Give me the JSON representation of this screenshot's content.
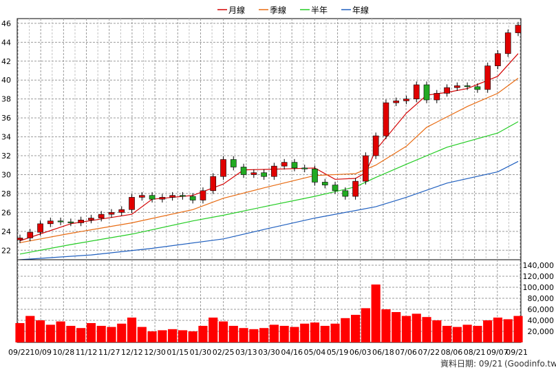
{
  "chart_data": [
    {
      "type": "candlestick",
      "legend": [
        {
          "name": "月線",
          "color": "#d40000"
        },
        {
          "name": "季線",
          "color": "#e86a10"
        },
        {
          "name": "半年",
          "color": "#22cc22"
        },
        {
          "name": "年線",
          "color": "#1f5fbf"
        }
      ],
      "ylim": [
        21,
        46.5
      ],
      "yticks": [
        22,
        24,
        26,
        28,
        30,
        32,
        34,
        36,
        38,
        40,
        42,
        44,
        46
      ],
      "grid": true,
      "up_color": "#e00000",
      "down_color": "#22aa22",
      "close_series": [
        [
          "09/22",
          23.3
        ],
        [
          "09/29",
          23.9
        ],
        [
          "10/09",
          24.8
        ],
        [
          "10/16",
          25.1
        ],
        [
          "10/23",
          25.0
        ],
        [
          "10/28",
          24.9
        ],
        [
          "11/04",
          25.2
        ],
        [
          "11/12",
          25.4
        ],
        [
          "11/19",
          25.8
        ],
        [
          "11/27",
          26.0
        ],
        [
          "12/04",
          26.3
        ],
        [
          "12/12",
          27.6
        ],
        [
          "12/19",
          27.8
        ],
        [
          "12/30",
          27.4
        ],
        [
          "01/08",
          27.6
        ],
        [
          "01/15",
          27.8
        ],
        [
          "01/22",
          27.7
        ],
        [
          "01/30",
          27.3
        ],
        [
          "02/10",
          28.3
        ],
        [
          "02/18",
          29.8
        ],
        [
          "02/25",
          31.6
        ],
        [
          "03/04",
          30.8
        ],
        [
          "03/13",
          30.0
        ],
        [
          "03/20",
          30.2
        ],
        [
          "03/30",
          29.8
        ],
        [
          "04/08",
          30.9
        ],
        [
          "04/16",
          31.3
        ],
        [
          "04/22",
          30.7
        ],
        [
          "04/28",
          30.6
        ],
        [
          "05/04",
          29.2
        ],
        [
          "05/11",
          28.9
        ],
        [
          "05/19",
          28.3
        ],
        [
          "05/26",
          27.7
        ],
        [
          "06/03",
          29.3
        ],
        [
          "06/10",
          32.0
        ],
        [
          "06/18",
          34.1
        ],
        [
          "06/23",
          37.6
        ],
        [
          "06/30",
          37.8
        ],
        [
          "07/06",
          38.0
        ],
        [
          "07/14",
          39.5
        ],
        [
          "07/22",
          37.9
        ],
        [
          "07/29",
          38.6
        ],
        [
          "08/06",
          39.2
        ],
        [
          "08/13",
          39.4
        ],
        [
          "08/21",
          39.3
        ],
        [
          "08/28",
          39.0
        ],
        [
          "09/03",
          41.5
        ],
        [
          "09/07",
          42.8
        ],
        [
          "09/14",
          45.0
        ],
        [
          "09/21",
          45.8
        ]
      ],
      "moving_averages": {
        "月線": [
          [
            "09/22",
            23.0
          ],
          [
            "10/28",
            24.8
          ],
          [
            "12/12",
            25.8
          ],
          [
            "12/30",
            27.4
          ],
          [
            "01/30",
            27.8
          ],
          [
            "02/25",
            29.0
          ],
          [
            "03/13",
            30.5
          ],
          [
            "04/16",
            30.6
          ],
          [
            "05/04",
            30.7
          ],
          [
            "05/19",
            29.5
          ],
          [
            "06/03",
            29.6
          ],
          [
            "06/10",
            30.2
          ],
          [
            "06/18",
            32.6
          ],
          [
            "07/06",
            36.5
          ],
          [
            "07/22",
            38.4
          ],
          [
            "08/06",
            38.7
          ],
          [
            "08/21",
            39.1
          ],
          [
            "09/07",
            40.4
          ],
          [
            "09/21",
            42.8
          ]
        ],
        "季線": [
          [
            "09/22",
            22.8
          ],
          [
            "10/28",
            23.8
          ],
          [
            "12/12",
            24.9
          ],
          [
            "01/30",
            26.3
          ],
          [
            "02/25",
            27.5
          ],
          [
            "03/30",
            28.6
          ],
          [
            "05/04",
            29.9
          ],
          [
            "06/03",
            30.1
          ],
          [
            "06/18",
            31.0
          ],
          [
            "07/06",
            33.0
          ],
          [
            "07/22",
            35.0
          ],
          [
            "08/21",
            37.2
          ],
          [
            "09/07",
            38.6
          ],
          [
            "09/21",
            40.2
          ]
        ],
        "半年": [
          [
            "09/22",
            21.6
          ],
          [
            "10/28",
            22.6
          ],
          [
            "12/12",
            23.7
          ],
          [
            "01/30",
            25.1
          ],
          [
            "02/25",
            25.7
          ],
          [
            "03/30",
            26.6
          ],
          [
            "05/04",
            27.7
          ],
          [
            "06/03",
            28.7
          ],
          [
            "06/18",
            29.7
          ],
          [
            "07/06",
            31.1
          ],
          [
            "08/06",
            32.9
          ],
          [
            "09/07",
            34.4
          ],
          [
            "09/21",
            35.6
          ]
        ],
        "年線": [
          [
            "09/22",
            21.0
          ],
          [
            "11/12",
            21.5
          ],
          [
            "12/30",
            22.2
          ],
          [
            "02/25",
            23.2
          ],
          [
            "03/30",
            24.2
          ],
          [
            "05/04",
            25.4
          ],
          [
            "06/03",
            26.2
          ],
          [
            "06/18",
            26.6
          ],
          [
            "07/06",
            27.6
          ],
          [
            "08/06",
            29.1
          ],
          [
            "09/07",
            30.3
          ],
          [
            "09/21",
            31.4
          ]
        ]
      }
    },
    {
      "type": "bar",
      "name": "volume",
      "ylim": [
        0,
        150000
      ],
      "yticks": [
        "140,000",
        "120,000",
        "100,000",
        "80,000",
        "60,000",
        "40,000",
        "20,000"
      ],
      "ytick_values": [
        140000,
        120000,
        100000,
        80000,
        60000,
        40000,
        20000
      ],
      "bar_color": "#ff0000",
      "x_tick_labels": [
        "09/22",
        "10/09",
        "10/28",
        "11/12",
        "11/27",
        "12/12",
        "12/30",
        "01/15",
        "01/30",
        "02/25",
        "03/13",
        "03/30",
        "04/16",
        "05/04",
        "05/19",
        "06/03",
        "06/18",
        "07/06",
        "07/22",
        "08/06",
        "08/21",
        "09/07",
        "09/21"
      ],
      "weekly_volume": [
        [
          "09/22",
          35000
        ],
        [
          "09/29",
          48000
        ],
        [
          "10/09",
          40000
        ],
        [
          "10/16",
          32000
        ],
        [
          "10/23",
          38000
        ],
        [
          "10/28",
          30000
        ],
        [
          "11/04",
          26000
        ],
        [
          "11/12",
          35000
        ],
        [
          "11/19",
          30000
        ],
        [
          "11/27",
          28000
        ],
        [
          "12/04",
          34000
        ],
        [
          "12/12",
          45000
        ],
        [
          "12/19",
          28000
        ],
        [
          "12/30",
          20000
        ],
        [
          "01/08",
          22000
        ],
        [
          "01/15",
          24000
        ],
        [
          "01/22",
          22000
        ],
        [
          "01/30",
          20000
        ],
        [
          "02/10",
          30000
        ],
        [
          "02/18",
          45000
        ],
        [
          "02/25",
          38000
        ],
        [
          "03/04",
          30000
        ],
        [
          "03/13",
          26000
        ],
        [
          "03/20",
          24000
        ],
        [
          "03/30",
          26000
        ],
        [
          "04/08",
          32000
        ],
        [
          "04/16",
          30000
        ],
        [
          "04/22",
          28000
        ],
        [
          "04/28",
          34000
        ],
        [
          "05/04",
          36000
        ],
        [
          "05/11",
          30000
        ],
        [
          "05/19",
          34000
        ],
        [
          "05/26",
          44000
        ],
        [
          "06/03",
          50000
        ],
        [
          "06/10",
          62000
        ],
        [
          "06/18",
          105000
        ],
        [
          "06/23",
          60000
        ],
        [
          "06/30",
          55000
        ],
        [
          "07/06",
          48000
        ],
        [
          "07/14",
          52000
        ],
        [
          "07/22",
          46000
        ],
        [
          "07/29",
          40000
        ],
        [
          "08/06",
          30000
        ],
        [
          "08/13",
          28000
        ],
        [
          "08/21",
          32000
        ],
        [
          "08/28",
          30000
        ],
        [
          "09/03",
          40000
        ],
        [
          "09/07",
          45000
        ],
        [
          "09/14",
          42000
        ],
        [
          "09/21",
          48000
        ]
      ]
    }
  ],
  "footer": {
    "date_text": "資料日期: 09/21",
    "source_text": "(Goodinfo.tw)"
  }
}
